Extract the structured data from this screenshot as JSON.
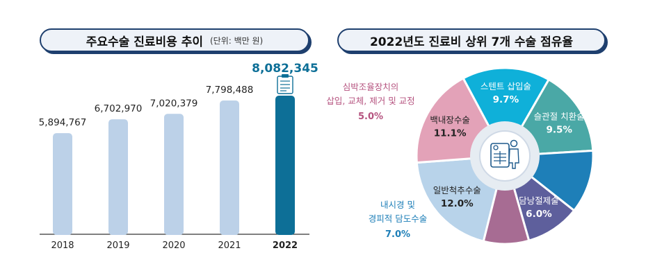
{
  "left_panel": {
    "title": "주요수술 진료비용 추이",
    "unit": "(단위: 백만 원)"
  },
  "right_panel": {
    "title": "2022년도 진료비 상위 7개 수술 점유율"
  },
  "colors": {
    "bar_default": "#bcd1e8",
    "bar_highlight": "#0d6f97",
    "highlight_label": "#0d6f97"
  },
  "chart_data": [
    {
      "type": "bar",
      "title": "주요수술 진료비용 추이",
      "unit": "(단위: 백만 원)",
      "categories": [
        "2018",
        "2019",
        "2020",
        "2021",
        "2022"
      ],
      "values": [
        5894767,
        6702970,
        7020379,
        7798488,
        8082345
      ],
      "value_labels": [
        "5,894,767",
        "6,702,970",
        "7,020,379",
        "7,798,488",
        "8,082,345"
      ],
      "highlight_index": 4
    },
    {
      "type": "pie",
      "title": "2022년도 진료비 상위 7개 수술 점유율",
      "slices": [
        {
          "label": "일반척추수술",
          "value": 12.0,
          "value_label": "12.0%",
          "color": "#b8d3ea"
        },
        {
          "label": "백내장수술",
          "value": 11.1,
          "value_label": "11.1%",
          "color": "#e3a2b8"
        },
        {
          "label": "스텐트 삽입술",
          "value": 9.7,
          "value_label": "9.7%",
          "color": "#0fb0d9"
        },
        {
          "label": "슬관절 치환술",
          "value": 9.5,
          "value_label": "9.5%",
          "color": "#4aa8a6"
        },
        {
          "label": "내시경 및 경피적 담도수술",
          "value": 7.0,
          "value_label": "7.0%",
          "color": "#1e7fb8"
        },
        {
          "label": "담낭절제술",
          "value": 6.0,
          "value_label": "6.0%",
          "color": "#5e5f9c"
        },
        {
          "label": "심박조율장치의 삽입, 교체, 제거 및 교정",
          "value": 5.0,
          "value_label": "5.0%",
          "color": "#a76c93"
        }
      ],
      "outside_labels": {
        "endoscopic_line1": "내시경 및",
        "endoscopic_line2": "경피적 담도수술",
        "endoscopic_color": "#1e7fb8",
        "pacemaker_line1": "심박조율장치의",
        "pacemaker_line2": "삽입, 교체, 제거 및 교정",
        "pacemaker_color": "#b5537f"
      }
    }
  ]
}
